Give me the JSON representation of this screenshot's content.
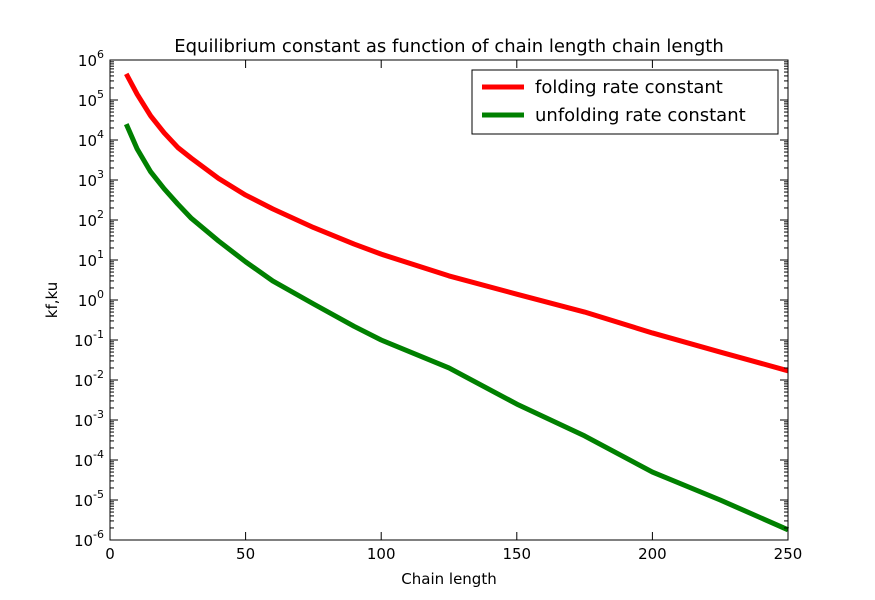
{
  "chart_data": {
    "type": "line",
    "title": "Equilibrium constant as function of chain length chain length",
    "xlabel": "Chain length",
    "ylabel": "kf,ku",
    "xlim": [
      0,
      250
    ],
    "ylim": [
      1e-06,
      1000000.0
    ],
    "yscale": "log",
    "x_ticks": [
      "0",
      "50",
      "100",
      "150",
      "200",
      "250"
    ],
    "y_ticks": [
      {
        "base": "10",
        "exp": "-6"
      },
      {
        "base": "10",
        "exp": "-5"
      },
      {
        "base": "10",
        "exp": "-4"
      },
      {
        "base": "10",
        "exp": "-3"
      },
      {
        "base": "10",
        "exp": "-2"
      },
      {
        "base": "10",
        "exp": "-1"
      },
      {
        "base": "10",
        "exp": "0"
      },
      {
        "base": "10",
        "exp": "1"
      },
      {
        "base": "10",
        "exp": "2"
      },
      {
        "base": "10",
        "exp": "3"
      },
      {
        "base": "10",
        "exp": "4"
      },
      {
        "base": "10",
        "exp": "5"
      },
      {
        "base": "10",
        "exp": "6"
      }
    ],
    "grid": false,
    "legend_position": "top-right",
    "series": [
      {
        "name": "folding rate constant",
        "color": "#ff0000",
        "x": [
          6,
          10,
          15,
          20,
          25,
          30,
          40,
          50,
          60,
          75,
          90,
          100,
          125,
          150,
          175,
          200,
          225,
          250
        ],
        "y": [
          450000,
          140000,
          40000,
          15000,
          6500,
          3500,
          1100,
          420,
          190,
          65,
          25,
          14,
          4,
          1.4,
          0.5,
          0.15,
          0.05,
          0.017
        ]
      },
      {
        "name": "unfolding rate constant",
        "color": "#008000",
        "x": [
          6,
          10,
          15,
          20,
          25,
          30,
          40,
          50,
          60,
          75,
          90,
          100,
          125,
          150,
          175,
          200,
          225,
          250
        ],
        "y": [
          25000,
          6000,
          1600,
          600,
          250,
          110,
          30,
          9,
          3,
          0.8,
          0.22,
          0.1,
          0.02,
          0.0025,
          0.0004,
          5e-05,
          1e-05,
          1.8e-06
        ]
      }
    ]
  }
}
